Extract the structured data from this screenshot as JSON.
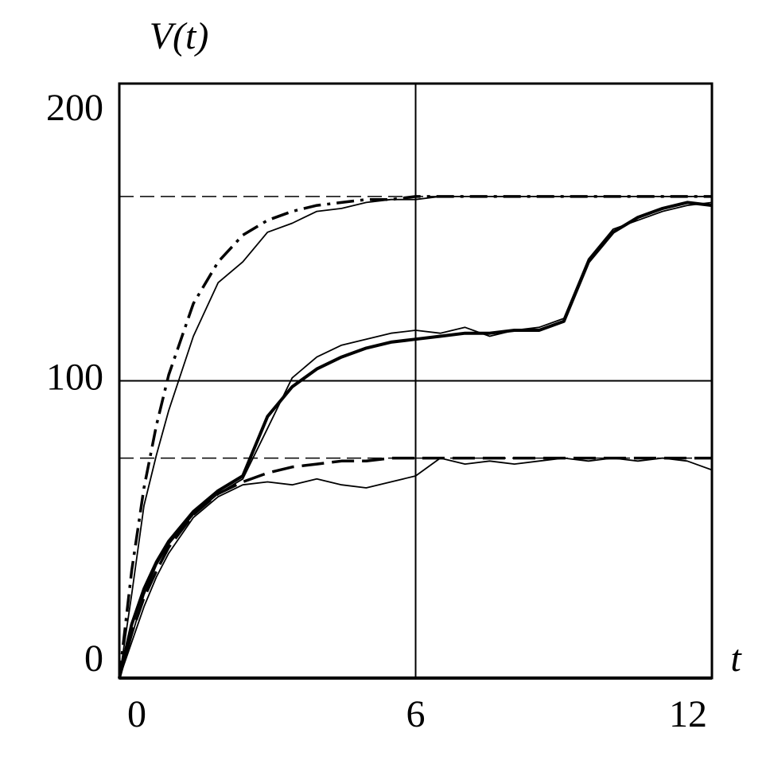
{
  "chart_data": {
    "type": "line",
    "y_label": "V(t)",
    "x_label": "t",
    "x": [
      0,
      0.25,
      0.5,
      0.75,
      1,
      1.5,
      2,
      2.5,
      3,
      3.5,
      4,
      4.5,
      5,
      5.5,
      6,
      6.5,
      7,
      7.5,
      8,
      8.5,
      9,
      9.5,
      10,
      10.5,
      11,
      11.5,
      12
    ],
    "series": [
      {
        "style": "dashdot",
        "color": "#000000",
        "values": [
          0,
          36,
          64,
          85,
          102,
          126,
          140,
          149,
          154,
          157,
          159,
          160,
          161,
          161,
          162,
          162,
          162,
          162,
          162,
          162,
          162,
          162,
          162,
          162,
          162,
          162,
          162
        ]
      },
      {
        "style": "thin",
        "color": "#000000",
        "values": [
          0,
          28,
          58,
          75,
          90,
          115,
          133,
          140,
          150,
          153,
          157,
          158,
          160,
          161,
          161,
          162,
          162,
          162,
          162,
          162,
          162,
          162,
          162,
          162,
          162,
          162,
          162
        ]
      },
      {
        "style": "thick",
        "color": "#000000",
        "values": [
          0,
          18,
          30,
          39,
          46,
          56,
          63,
          68,
          88,
          98,
          104,
          108,
          111,
          113,
          114,
          115,
          116,
          116,
          117,
          117,
          120,
          140,
          150,
          155,
          158,
          160,
          159
        ]
      },
      {
        "style": "thin",
        "color": "#000000",
        "values": [
          0,
          14,
          28,
          38,
          45,
          55,
          62,
          67,
          84,
          101,
          108,
          112,
          114,
          116,
          117,
          116,
          118,
          115,
          117,
          118,
          121,
          141,
          151,
          154,
          157,
          159,
          160
        ]
      },
      {
        "style": "dashed",
        "color": "#000000",
        "values": [
          0,
          15,
          27,
          36,
          44,
          55,
          62,
          66,
          69,
          71,
          72,
          73,
          73,
          74,
          74,
          74,
          74,
          74,
          74,
          74,
          74,
          74,
          74,
          74,
          74,
          74,
          74
        ]
      },
      {
        "style": "thin",
        "color": "#000000",
        "values": [
          0,
          12,
          24,
          34,
          42,
          54,
          61,
          65,
          66,
          65,
          67,
          65,
          64,
          66,
          68,
          74,
          72,
          73,
          72,
          73,
          74,
          73,
          74,
          73,
          74,
          73,
          70
        ]
      }
    ],
    "reference_lines": [
      162,
      74
    ],
    "xlim": [
      0,
      12
    ],
    "xticks": [
      0,
      6,
      12
    ],
    "ylim": [
      0,
      200
    ],
    "yticks": [
      0,
      100,
      200
    ],
    "grid": true
  }
}
